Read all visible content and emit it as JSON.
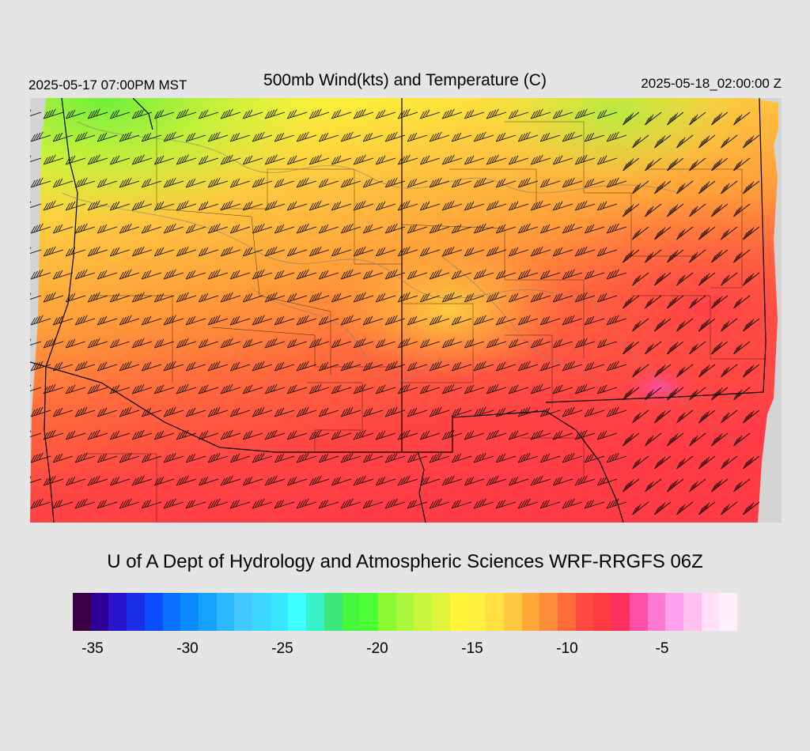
{
  "header": {
    "valid_local": "2025-05-17 07:00PM MST",
    "title": "500mb Wind(kts) and Temperature (C)",
    "valid_utc": "2025-05-18_02:00:00 Z"
  },
  "footer": {
    "credit": "U of A Dept of Hydrology and Atmospheric Sciences WRF-RRGFS 06Z"
  },
  "map": {
    "field": "500mb temperature (C) with wind barbs (kts)",
    "wind_direction": "west-southwesterly over most of the domain, southwesterly in the east"
  },
  "colorbar": {
    "tick_labels": [
      "-35",
      "-30",
      "-25",
      "-20",
      "-15",
      "-10",
      "-5"
    ],
    "colors": [
      "#3a0046",
      "#2f0096",
      "#2a16cc",
      "#1a2ee8",
      "#0a4cff",
      "#0a70ff",
      "#0a8cff",
      "#15a2ff",
      "#2bb8ff",
      "#40c8ff",
      "#3dd6ff",
      "#38e6ff",
      "#40ffff",
      "#36f0c8",
      "#3ce87c",
      "#46f83c",
      "#4cff36",
      "#8cf832",
      "#a8f840",
      "#c8f43c",
      "#e0f43c",
      "#fff436",
      "#fff040",
      "#ffe040",
      "#ffc840",
      "#ffa838",
      "#ff8c38",
      "#ff6a3a",
      "#ff4a40",
      "#ff3a42",
      "#ff3060",
      "#ff50a8",
      "#ff78d0",
      "#ffa0f0",
      "#ffc0f0",
      "#ffe0f8",
      "#fff0fc"
    ]
  }
}
